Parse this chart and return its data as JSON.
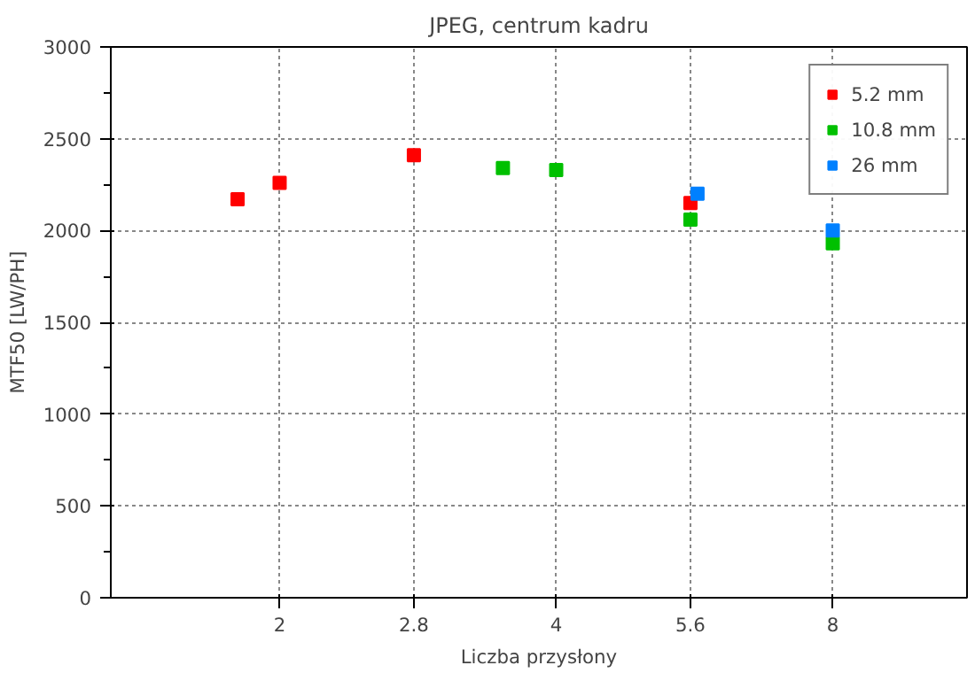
{
  "chart_data": {
    "type": "scatter",
    "title": "JPEG, centrum kadru",
    "xlabel": "Liczba przysłony",
    "ylabel": "MTF50 [LW/PH]",
    "log": "x",
    "xlim": [
      1.31,
      11.2
    ],
    "xticks": [
      2,
      2.8,
      4,
      5.6,
      8
    ],
    "ylim": [
      0,
      3000
    ],
    "yticks": [
      0,
      500,
      1000,
      1500,
      2000,
      2500,
      3000
    ],
    "grid": true,
    "legend": "top right",
    "marker": "square",
    "series": [
      {
        "name": "5.2 mm",
        "color": "#ff0000",
        "x": [
          1.8,
          2,
          2.8,
          5.6
        ],
        "values": [
          2170,
          2260,
          2410,
          2150
        ]
      },
      {
        "name": "10.8 mm",
        "color": "#00c000",
        "x": [
          3.5,
          4,
          5.6,
          8
        ],
        "values": [
          2340,
          2330,
          2060,
          1930
        ]
      },
      {
        "name": "26 mm",
        "color": "#0080ff",
        "x": [
          5.7,
          8
        ],
        "values": [
          2200,
          2000
        ]
      }
    ]
  }
}
